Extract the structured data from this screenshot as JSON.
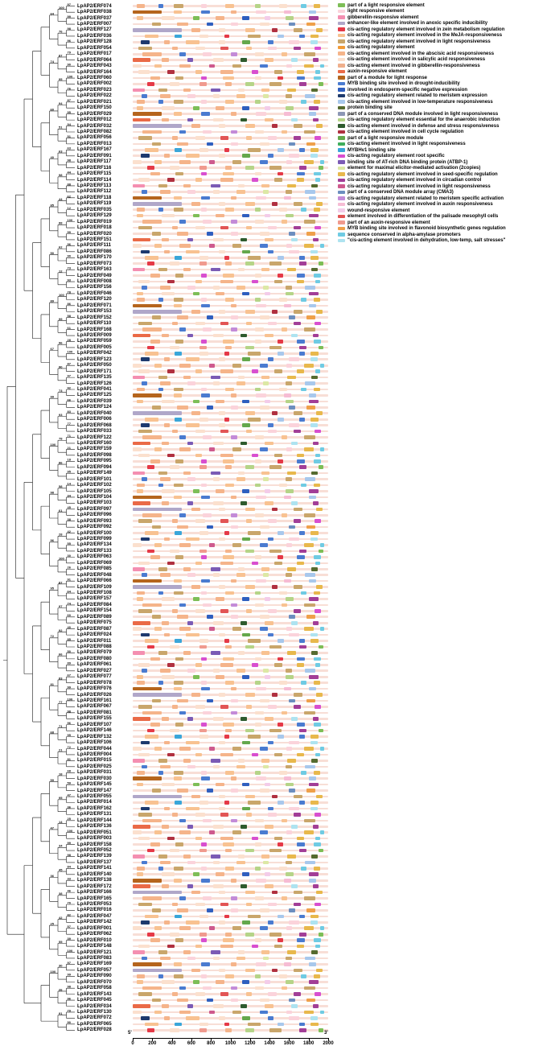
{
  "axis": {
    "five_prime": "5'",
    "three_prime": "3'",
    "ticks": [
      "0",
      "200",
      "400",
      "600",
      "800",
      "1000",
      "1200",
      "1400",
      "1600",
      "1800",
      "2000"
    ],
    "max_bp": 2000
  },
  "legend": {
    "items": [
      {
        "label": "part of a light responsive element",
        "color": "#7DBE57"
      },
      {
        "label": "light responsive element",
        "color": "#FBD3DB"
      },
      {
        "label": "gibberellin-responsive element",
        "color": "#F48FB1"
      },
      {
        "label": "enhancer-like element involved in anoxic specific inducibility",
        "color": "#B0A7C9"
      },
      {
        "label": "cis-acting regulatory element involved in zein metabolism regulation",
        "color": "#E53947"
      },
      {
        "label": "cis-acting regulatory element involved in the MeJA-responsiveness",
        "color": "#F8C291"
      },
      {
        "label": "cis-acting regulatory element involved in light responsiveness",
        "color": "#C9A66B"
      },
      {
        "label": "cis-acting regulatory element",
        "color": "#F29B38"
      },
      {
        "label": "cis-acting element involved in the abscisic acid responsiveness",
        "color": "#F5B48A"
      },
      {
        "label": "cis-acting element involved in salicylic acid responsiveness",
        "color": "#FBE0CE"
      },
      {
        "label": "cis-acting element involved in gibberellin-responsiveness",
        "color": "#EFAF8C"
      },
      {
        "label": "auxin-responsive element",
        "color": "#EA6A47"
      },
      {
        "label": "part of a module for light response",
        "color": "#B5651D"
      },
      {
        "label": "MYB binding site involved in drought-inducibility",
        "color": "#4A7BD0"
      },
      {
        "label": "involved in endosperm-specific negative expression",
        "color": "#2F5FBF"
      },
      {
        "label": "cis-acting regulatory element related to meristem expression",
        "color": "#1E3A6E"
      },
      {
        "label": "cis-acting element involved in low-temperature responsiveness",
        "color": "#A8C8EC"
      },
      {
        "label": "protein binding site",
        "color": "#556B2F"
      },
      {
        "label": "part of a conserved DNA module involved in light responsiveness",
        "color": "#8C97B5"
      },
      {
        "label": "cis-acting regulatory element essential for the anaerobic induction",
        "color": "#B5D488"
      },
      {
        "label": "cis-acting element involved in defense and stress responsiveness",
        "color": "#2E5B2E"
      },
      {
        "label": "cis-acting element involved in cell cycle regulation",
        "color": "#B03040"
      },
      {
        "label": "part of a light responsive module",
        "color": "#64A84C"
      },
      {
        "label": "cis-acting element involved in light responsiveness",
        "color": "#3FAE5C"
      },
      {
        "label": "MYBHv1 binding site",
        "color": "#3AA6D9"
      },
      {
        "label": "cis-acting regulatory element root specific",
        "color": "#D84FD0"
      },
      {
        "label": "binding site of AT-rich DNA binding protein (ATBP-1)",
        "color": "#7B5BB5"
      },
      {
        "label": "element for maximal elicitor-mediated activation (2copies)",
        "color": "#DCE8A5"
      },
      {
        "label": "cis-acting regulatory element involved in seed-specific regulation",
        "color": "#E8B84C"
      },
      {
        "label": "cis-acting regulatory element involved in circadian control",
        "color": "#A23E97"
      },
      {
        "label": "cis-acting regulatory element involved in light responsiveness",
        "color": "#CE5A8E"
      },
      {
        "label": "part of a conserved DNA module array (CMA3)",
        "color": "#6C8EBF"
      },
      {
        "label": "cis-acting regulatory element related to meristem specific activation",
        "color": "#C38BD8"
      },
      {
        "label": "cis-acting regulatory element involved in auxin responsiveness",
        "color": "#F6BCD4"
      },
      {
        "label": "wound-responsive element",
        "color": "#F3CCE9"
      },
      {
        "label": "element involved in differentiation of the palisade mesophyll cells",
        "color": "#E25555"
      },
      {
        "label": "part of an auxin-responsive element",
        "color": "#F09A8E"
      },
      {
        "label": "MYB binding site involved in flavonoid biosynthetic genes regulation",
        "color": "#EFA04A"
      },
      {
        "label": "sequence conserved in alpha-amylase promoters",
        "color": "#6FCBE3"
      },
      {
        "label": "\"cis-acting element involved in dehydration, low-temp, salt stresses\"",
        "color": "#AEE3F0"
      }
    ]
  },
  "genes": [
    "LpAP2/ERF074",
    "LpAP2/ERF038",
    "LpAP2/ERF037",
    "LpAP2/ERF007",
    "LpAP2/ERF127",
    "LpAP2/ERF036",
    "LpAP2/ERF128",
    "LpAP2/ERF054",
    "LpAP2/ERF017",
    "LpAP2/ERF064",
    "LpAP2/ERF043",
    "LpAP2/ERF164",
    "LpAP2/ERF060",
    "LpAP2/ERF002",
    "LpAP2/ERF023",
    "LpAP2/ERF022",
    "LpAP2/ERF021",
    "LpAP2/ERF150",
    "LpAP2/ERF029",
    "LpAP2/ERF012",
    "LpAP2/ERF032",
    "LpAP2/ERF082",
    "LpAP2/ERF056",
    "LpAP2/ERF013",
    "LpAP2/ERF167",
    "LpAP2/ERF091",
    "LpAP2/ERF117",
    "LpAP2/ERF116",
    "LpAP2/ERF115",
    "LpAP2/ERF114",
    "LpAP2/ERF113",
    "LpAP2/ERF112",
    "LpAP2/ERF118",
    "LpAP2/ERF119",
    "LpAP2/ERF035",
    "LpAP2/ERF129",
    "LpAP2/ERF019",
    "LpAP2/ERF018",
    "LpAP2/ERF020",
    "LpAP2/ERF151",
    "LpAP2/ERF111",
    "LpAP2/ERF086",
    "LpAP2/ERF170",
    "LpAP2/ERF073",
    "LpAP2/ERF163",
    "LpAP2/ERF049",
    "LpAP2/ERF008",
    "LpAP2/ERF156",
    "LpAP2/ERF046",
    "LpAP2/ERF120",
    "LpAP2/ERF071",
    "LpAP2/ERF153",
    "LpAP2/ERF152",
    "LpAP2/ERF110",
    "LpAP2/ERF168",
    "LpAP2/ERF009",
    "LpAP2/ERF059",
    "LpAP2/ERF005",
    "LpAP2/ERF042",
    "LpAP2/ERF123",
    "LpAP2/ERF050",
    "LpAP2/ERF171",
    "LpAP2/ERF135",
    "LpAP2/ERF126",
    "LpAP2/ERF041",
    "LpAP2/ERF125",
    "LpAP2/ERF039",
    "LpAP2/ERF124",
    "LpAP2/ERF040",
    "LpAP2/ERF006",
    "LpAP2/ERF068",
    "LpAP2/ERF033",
    "LpAP2/ERF122",
    "LpAP2/ERF160",
    "LpAP2/ERF159",
    "LpAP2/ERF098",
    "LpAP2/ERF095",
    "LpAP2/ERF094",
    "LpAP2/ERF149",
    "LpAP2/ERF101",
    "LpAP2/ERF102",
    "LpAP2/ERF105",
    "LpAP2/ERF104",
    "LpAP2/ERF103",
    "LpAP2/ERF097",
    "LpAP2/ERF096",
    "LpAP2/ERF093",
    "LpAP2/ERF092",
    "LpAP2/ERF100",
    "LpAP2/ERF099",
    "LpAP2/ERF134",
    "LpAP2/ERF133",
    "LpAP2/ERF063",
    "LpAP2/ERF069",
    "LpAP2/ERF085",
    "LpAP2/ERF048",
    "LpAP2/ERF066",
    "LpAP2/ERF109",
    "LpAP2/ERF108",
    "LpAP2/ERF157",
    "LpAP2/ERF084",
    "LpAP2/ERF154",
    "LpAP2/ERF089",
    "LpAP2/ERF075",
    "LpAP2/ERF087",
    "LpAP2/ERF024",
    "LpAP2/ERF011",
    "LpAP2/ERF088",
    "LpAP2/ERF079",
    "LpAP2/ERF080",
    "LpAP2/ERF061",
    "LpAP2/ERF027",
    "LpAP2/ERF077",
    "LpAP2/ERF078",
    "LpAP2/ERF076",
    "LpAP2/ERF026",
    "LpAP2/ERF161",
    "LpAP2/ERF067",
    "LpAP2/ERF081",
    "LpAP2/ERF155",
    "LpAP2/ERF107",
    "LpAP2/ERF146",
    "LpAP2/ERF132",
    "LpAP2/ERF106",
    "LpAP2/ERF044",
    "LpAP2/ERF004",
    "LpAP2/ERF015",
    "LpAP2/ERF025",
    "LpAP2/ERF031",
    "LpAP2/ERF030",
    "LpAP2/ERF145",
    "LpAP2/ERF147",
    "LpAP2/ERF055",
    "LpAP2/ERF014",
    "LpAP2/ERF162",
    "LpAP2/ERF131",
    "LpAP2/ERF144",
    "LpAP2/ERF136",
    "LpAP2/ERF051",
    "LpAP2/ERF003",
    "LpAP2/ERF158",
    "LpAP2/ERF052",
    "LpAP2/ERF139",
    "LpAP2/ERF137",
    "LpAP2/ERF141",
    "LpAP2/ERF140",
    "LpAP2/ERF138",
    "LpAP2/ERF172",
    "LpAP2/ERF166",
    "LpAP2/ERF165",
    "LpAP2/ERF053",
    "LpAP2/ERF016",
    "LpAP2/ERF047",
    "LpAP2/ERF142",
    "LpAP2/ERF001",
    "LpAP2/ERF062",
    "LpAP2/ERF010",
    "LpAP2/ERF148",
    "LpAP2/ERF121",
    "LpAP2/ERF083",
    "LpAP2/ERF169",
    "LpAP2/ERF057",
    "LpAP2/ERF090",
    "LpAP2/ERF070",
    "LpAP2/ERF058",
    "LpAP2/ERF143",
    "LpAP2/ERF045",
    "LpAP2/ERF034",
    "LpAP2/ERF130",
    "LpAP2/ERF072",
    "LpAP2/ERF065",
    "LpAP2/ERF028"
  ],
  "tree": {
    "bootstrap_values": [
      97,
      99,
      98,
      96,
      79,
      90,
      100,
      76,
      87,
      95,
      94,
      51,
      63,
      98,
      44,
      88,
      62,
      12,
      100,
      99,
      96,
      90,
      73,
      93,
      78,
      86,
      58,
      61,
      28,
      100,
      87,
      97,
      92,
      66,
      83,
      77,
      71,
      21,
      18,
      95,
      14,
      34,
      45,
      38,
      42,
      55,
      30,
      26,
      91,
      64,
      74,
      60,
      40,
      85,
      50,
      89,
      67,
      99,
      100,
      98,
      96,
      95,
      72,
      81,
      68,
      59,
      47,
      36,
      25,
      100,
      99,
      98,
      84,
      33,
      46,
      70,
      82,
      57,
      39,
      100
    ]
  },
  "bars": {
    "scale_max": 2000,
    "backbone_color": "#F8DED6",
    "sequence": "05A3C17E92F4B68D0A52C9E317F6B48D5C0A9E32F7168B4DA05C3E92B617F48D",
    "patterns": [
      [
        [
          40,
          80,
          8
        ],
        [
          260,
          50,
          13
        ],
        [
          420,
          100,
          6
        ],
        [
          700,
          60,
          1
        ],
        [
          950,
          90,
          5
        ],
        [
          1250,
          60,
          19
        ],
        [
          1500,
          80,
          9
        ],
        [
          1720,
          60,
          38
        ],
        [
          1850,
          70,
          28
        ]
      ],
      [
        [
          120,
          140,
          5
        ],
        [
          430,
          70,
          24
        ],
        [
          680,
          90,
          9
        ],
        [
          940,
          50,
          4
        ],
        [
          1180,
          130,
          6
        ],
        [
          1480,
          70,
          16
        ],
        [
          1700,
          60,
          13
        ],
        [
          1820,
          80,
          28
        ]
      ],
      [
        [
          0,
          180,
          11
        ],
        [
          300,
          70,
          8
        ],
        [
          560,
          60,
          26
        ],
        [
          820,
          110,
          9
        ],
        [
          1100,
          70,
          20
        ],
        [
          1350,
          90,
          5
        ],
        [
          1620,
          70,
          39
        ],
        [
          1840,
          60,
          29
        ]
      ],
      [
        [
          200,
          90,
          6
        ],
        [
          450,
          120,
          8
        ],
        [
          760,
          60,
          14
        ],
        [
          1000,
          80,
          1
        ],
        [
          1300,
          100,
          9
        ],
        [
          1600,
          60,
          31
        ],
        [
          1780,
          90,
          37
        ]
      ],
      [
        [
          60,
          110,
          9
        ],
        [
          350,
          80,
          21
        ],
        [
          640,
          70,
          5
        ],
        [
          900,
          130,
          8
        ],
        [
          1220,
          60,
          25
        ],
        [
          1450,
          80,
          6
        ],
        [
          1680,
          70,
          28
        ],
        [
          1870,
          50,
          38
        ]
      ],
      [
        [
          0,
          300,
          12
        ],
        [
          420,
          80,
          5
        ],
        [
          700,
          90,
          13
        ],
        [
          1000,
          60,
          8
        ],
        [
          1260,
          110,
          1
        ],
        [
          1550,
          70,
          33
        ],
        [
          1800,
          80,
          16
        ]
      ],
      [
        [
          150,
          70,
          4
        ],
        [
          380,
          100,
          9
        ],
        [
          680,
          80,
          36
        ],
        [
          950,
          60,
          8
        ],
        [
          1150,
          90,
          19
        ],
        [
          1400,
          120,
          6
        ],
        [
          1700,
          80,
          29
        ],
        [
          1900,
          50,
          0
        ]
      ],
      [
        [
          80,
          90,
          15
        ],
        [
          320,
          60,
          8
        ],
        [
          540,
          140,
          5
        ],
        [
          880,
          70,
          9
        ],
        [
          1120,
          80,
          22
        ],
        [
          1380,
          60,
          13
        ],
        [
          1600,
          100,
          1
        ],
        [
          1820,
          70,
          39
        ]
      ],
      [
        [
          0,
          120,
          2
        ],
        [
          260,
          90,
          6
        ],
        [
          520,
          70,
          8
        ],
        [
          800,
          100,
          26
        ],
        [
          1080,
          60,
          9
        ],
        [
          1320,
          80,
          5
        ],
        [
          1580,
          90,
          28
        ],
        [
          1830,
          60,
          17
        ]
      ],
      [
        [
          100,
          200,
          8
        ],
        [
          480,
          60,
          13
        ],
        [
          720,
          90,
          1
        ],
        [
          1000,
          70,
          32
        ],
        [
          1250,
          90,
          9
        ],
        [
          1520,
          60,
          5
        ],
        [
          1750,
          120,
          6
        ]
      ],
      [
        [
          40,
          70,
          5
        ],
        [
          300,
          130,
          9
        ],
        [
          620,
          60,
          0
        ],
        [
          850,
          90,
          8
        ],
        [
          1120,
          70,
          14
        ],
        [
          1350,
          60,
          34
        ],
        [
          1560,
          90,
          19
        ],
        [
          1800,
          100,
          29
        ]
      ],
      [
        [
          180,
          100,
          8
        ],
        [
          440,
          80,
          6
        ],
        [
          700,
          60,
          25
        ],
        [
          920,
          120,
          5
        ],
        [
          1250,
          70,
          9
        ],
        [
          1480,
          60,
          4
        ],
        [
          1680,
          80,
          13
        ],
        [
          1850,
          80,
          38
        ]
      ],
      [
        [
          0,
          500,
          3
        ],
        [
          600,
          90,
          8
        ],
        [
          880,
          70,
          9
        ],
        [
          1150,
          100,
          5
        ],
        [
          1420,
          60,
          21
        ],
        [
          1650,
          90,
          6
        ],
        [
          1880,
          60,
          28
        ]
      ],
      [
        [
          90,
          60,
          13
        ],
        [
          280,
          110,
          8
        ],
        [
          560,
          80,
          1
        ],
        [
          820,
          70,
          9
        ],
        [
          1060,
          90,
          5
        ],
        [
          1330,
          60,
          27
        ],
        [
          1560,
          70,
          6
        ],
        [
          1760,
          110,
          16
        ]
      ],
      [
        [
          60,
          140,
          6
        ],
        [
          400,
          60,
          8
        ],
        [
          640,
          100,
          9
        ],
        [
          900,
          80,
          35
        ],
        [
          1160,
          60,
          5
        ],
        [
          1380,
          90,
          1
        ],
        [
          1650,
          70,
          29
        ],
        [
          1860,
          70,
          25
        ]
      ],
      [
        [
          0,
          90,
          9
        ],
        [
          220,
          80,
          5
        ],
        [
          480,
          110,
          8
        ],
        [
          780,
          60,
          30
        ],
        [
          1020,
          90,
          6
        ],
        [
          1300,
          80,
          13
        ],
        [
          1570,
          60,
          1
        ],
        [
          1750,
          100,
          28
        ],
        [
          1920,
          40,
          38
        ]
      ]
    ]
  }
}
